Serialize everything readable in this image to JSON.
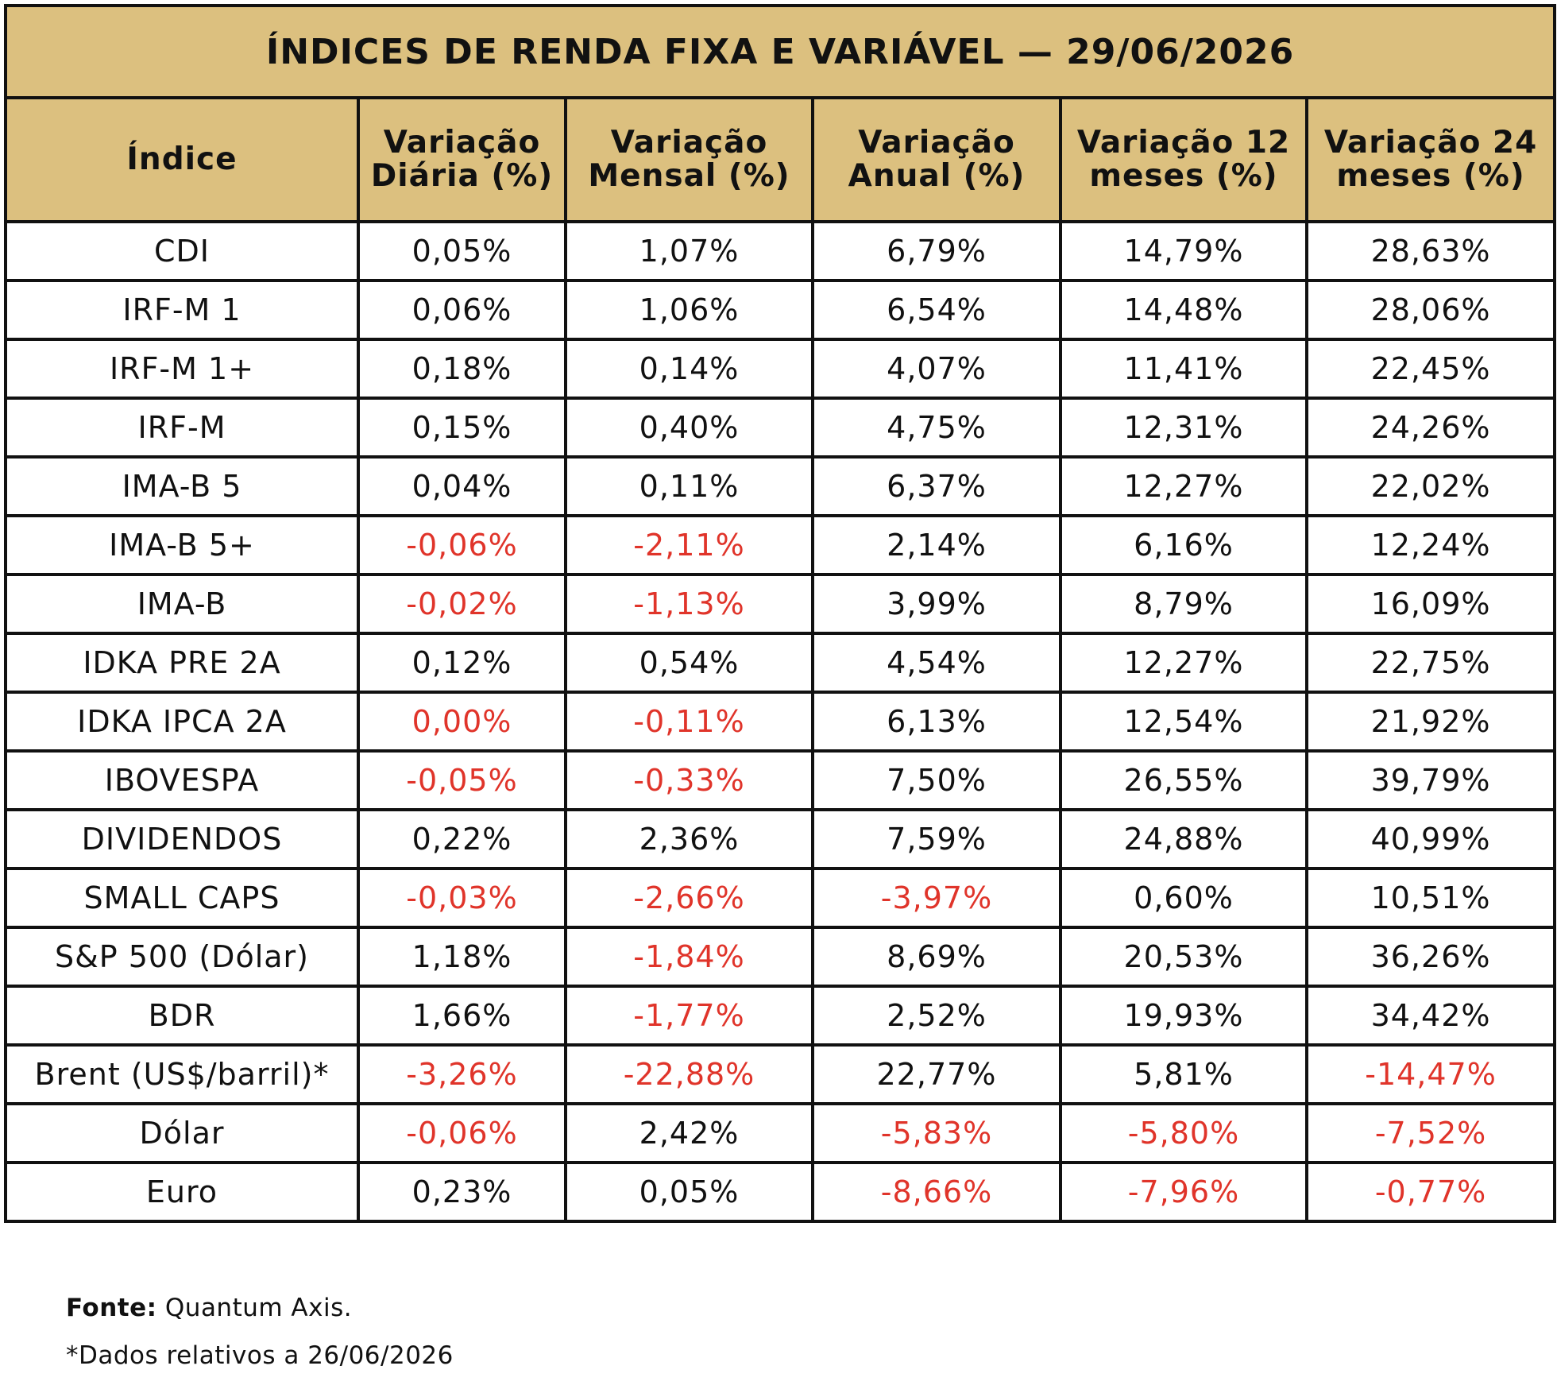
{
  "title": "ÍNDICES DE RENDA FIXA E VARIÁVEL — 29/06/2026",
  "table": {
    "header": [
      "Índice",
      "Variação Diária (%)",
      "Variação Mensal (%)",
      "Variação Anual (%)",
      "Variação 12 meses (%)",
      "Variação 24 meses (%)"
    ],
    "rows": [
      [
        "CDI",
        "0,05%",
        "1,07%",
        "6,79%",
        "14,79%",
        "28,63%"
      ],
      [
        "IRF-M 1",
        "0,06%",
        "1,06%",
        "6,54%",
        "14,48%",
        "28,06%"
      ],
      [
        "IRF-M 1+",
        "0,18%",
        "0,14%",
        "4,07%",
        "11,41%",
        "22,45%"
      ],
      [
        "IRF-M",
        "0,15%",
        "0,40%",
        "4,75%",
        "12,31%",
        "24,26%"
      ],
      [
        "IMA-B 5",
        "0,04%",
        "0,11%",
        "6,37%",
        "12,27%",
        "22,02%"
      ],
      [
        "IMA-B 5+",
        {
          "text": "-0,06%",
          "color": "#e0342a"
        },
        {
          "text": "-2,11%",
          "color": "#e0342a"
        },
        "2,14%",
        "6,16%",
        "12,24%"
      ],
      [
        "IMA-B",
        {
          "text": "-0,02%",
          "color": "#e0342a"
        },
        {
          "text": "-1,13%",
          "color": "#e0342a"
        },
        "3,99%",
        "8,79%",
        "16,09%"
      ],
      [
        "IDKA PRE 2A",
        "0,12%",
        "0,54%",
        "4,54%",
        "12,27%",
        "22,75%"
      ],
      [
        "IDKA IPCA 2A",
        {
          "text": "0,00%",
          "color": "#e0342a"
        },
        {
          "text": "-0,11%",
          "color": "#e0342a"
        },
        "6,13%",
        "12,54%",
        "21,92%"
      ],
      [
        "IBOVESPA",
        {
          "text": "-0,05%",
          "color": "#e0342a"
        },
        {
          "text": "-0,33%",
          "color": "#e0342a"
        },
        "7,50%",
        "26,55%",
        "39,79%"
      ],
      [
        "DIVIDENDOS",
        "0,22%",
        "2,36%",
        "7,59%",
        "24,88%",
        "40,99%"
      ],
      [
        "SMALL CAPS",
        {
          "text": "-0,03%",
          "color": "#e0342a"
        },
        {
          "text": "-2,66%",
          "color": "#e0342a"
        },
        {
          "text": "-3,97%",
          "color": "#e0342a"
        },
        "0,60%",
        "10,51%"
      ],
      [
        "S&P 500 (Dólar)",
        "1,18%",
        {
          "text": "-1,84%",
          "color": "#e0342a"
        },
        "8,69%",
        "20,53%",
        "36,26%"
      ],
      [
        "BDR",
        "1,66%",
        {
          "text": "-1,77%",
          "color": "#e0342a"
        },
        "2,52%",
        "19,93%",
        "34,42%"
      ],
      [
        "Brent (US$/barril)*",
        {
          "text": "-3,26%",
          "color": "#e0342a"
        },
        {
          "text": "-22,88%",
          "color": "#e0342a"
        },
        "22,77%",
        "5,81%",
        {
          "text": "-14,47%",
          "color": "#e0342a"
        }
      ],
      [
        "Dólar",
        {
          "text": "-0,06%",
          "color": "#e0342a"
        },
        "2,42%",
        {
          "text": "-5,83%",
          "color": "#e0342a"
        },
        {
          "text": "-5,80%",
          "color": "#e0342a"
        },
        {
          "text": "-7,52%",
          "color": "#e0342a"
        }
      ],
      [
        "Euro",
        "0,23%",
        "0,05%",
        {
          "text": "-8,66%",
          "color": "#e0342a"
        },
        {
          "text": "-7,96%",
          "color": "#e0342a"
        },
        {
          "text": "-0,77%",
          "color": "#e0342a"
        }
      ]
    ]
  },
  "footer": {
    "source_label": "Fonte:",
    "source": "Quantum Axis.",
    "note": "*Dados relativos a 26/06/2026"
  }
}
